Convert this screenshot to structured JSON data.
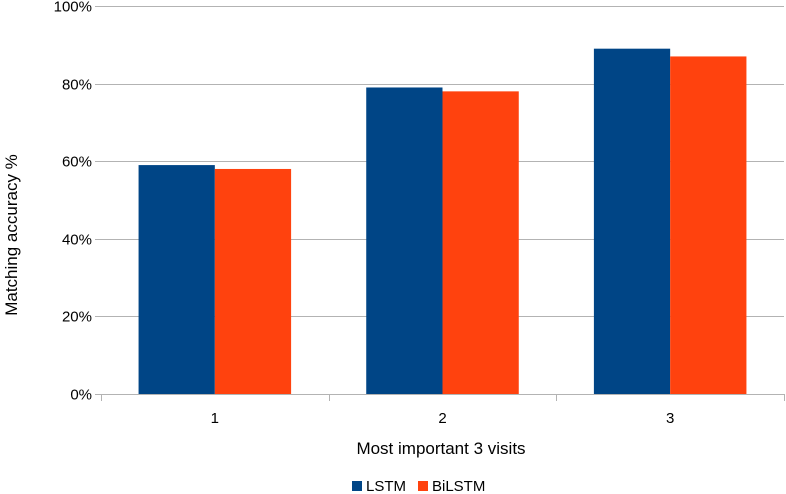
{
  "chart_data": {
    "type": "bar",
    "categories": [
      "1",
      "2",
      "3"
    ],
    "series": [
      {
        "name": "LSTM",
        "values": [
          59,
          79,
          89
        ],
        "color": "#004586"
      },
      {
        "name": "BiLSTM",
        "values": [
          58,
          78,
          87
        ],
        "color": "#ff420e"
      }
    ],
    "xlabel": "Most important 3 visits",
    "ylabel": "Matching accuracy %",
    "ylim": [
      0,
      100
    ],
    "yticks": [
      0,
      20,
      40,
      60,
      80,
      100
    ],
    "ytick_labels": [
      "0%",
      "20%",
      "40%",
      "60%",
      "80%",
      "100%"
    ],
    "grid": true,
    "legend_position": "bottom-center"
  }
}
